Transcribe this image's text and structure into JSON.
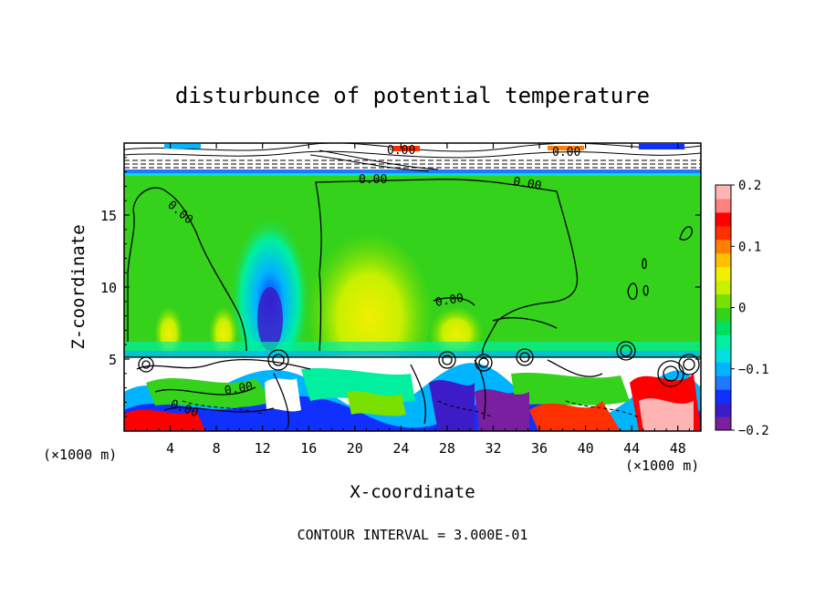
{
  "chart_data": {
    "type": "heatmap",
    "title": "disturbunce of potential temperature",
    "xlabel": "X-coordinate",
    "ylabel": "Z-coordinate",
    "x_unit_left": "(×1000 m)",
    "x_unit_right": "(×1000 m)",
    "xlim": [
      0,
      50
    ],
    "ylim": [
      0,
      20
    ],
    "x_ticks": [
      4,
      8,
      12,
      16,
      20,
      24,
      28,
      32,
      36,
      40,
      44,
      48
    ],
    "y_ticks": [
      5,
      10,
      15
    ],
    "colorbar": {
      "range": [
        -0.2,
        0.2
      ],
      "ticks": [
        0.2,
        0.1,
        0,
        -0.1,
        -0.2
      ],
      "tick_labels": [
        "0.2",
        "0.1",
        "0",
        "−0.1",
        "−0.2"
      ],
      "colors": [
        "#7a1fa0",
        "#3b1cc8",
        "#1030ff",
        "#1f78ff",
        "#00b4ff",
        "#00e0e0",
        "#00f0a0",
        "#00e060",
        "#34d21b",
        "#7ae000",
        "#c8f000",
        "#f0f000",
        "#ffc000",
        "#ff8000",
        "#ff3000",
        "#ff0000",
        "#ff8080",
        "#ffb4b4"
      ]
    },
    "contour_labels": [
      "0.00",
      "0.00",
      "0.00",
      "0.00",
      "0.00",
      "0.00",
      "0.00",
      "0.00"
    ],
    "footer": "CONTOUR INTERVAL = 3.000E-01"
  }
}
